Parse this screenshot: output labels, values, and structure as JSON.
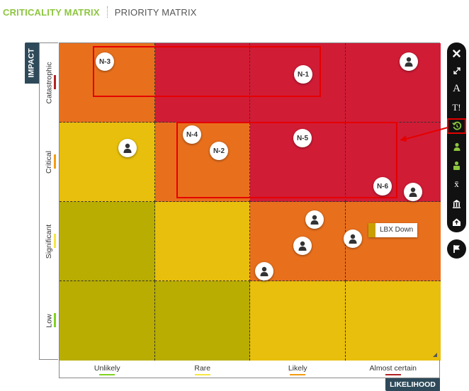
{
  "tabs": {
    "criticality": "CRITICALITY MATRIX",
    "priority": "PRIORITY MATRIX"
  },
  "axes": {
    "impact_title": "IMPACT",
    "likelihood_title": "LIKELIHOOD",
    "impact_levels": [
      {
        "label": "Catastrophic",
        "color": "#b22222"
      },
      {
        "label": "Critical",
        "color": "#f39c12"
      },
      {
        "label": "Significant",
        "color": "#f5e642"
      },
      {
        "label": "Low",
        "color": "#7fd321"
      }
    ],
    "likelihood_levels": [
      {
        "label": "Unlikely",
        "color": "#7fd321"
      },
      {
        "label": "Rare",
        "color": "#f5e642"
      },
      {
        "label": "Likely",
        "color": "#f39c12"
      },
      {
        "label": "Almost certain",
        "color": "#b22222"
      }
    ]
  },
  "colors": {
    "dark_red": "#d11c36",
    "orange": "#e8701d",
    "yellow": "#e8bf0c",
    "olive": "#b8ad00"
  },
  "markers": [
    {
      "label": "N-3"
    },
    {
      "label": "N-1"
    },
    {
      "label": "N-4"
    },
    {
      "label": "N-2"
    },
    {
      "label": "N-5"
    },
    {
      "label": "N-6"
    }
  ],
  "tooltip": {
    "text": "LBX Down",
    "color": "#c9a000"
  },
  "toolbar": {
    "buttons": [
      "close-icon",
      "expand-icon",
      "font-icon",
      "text-size-icon",
      "history-icon",
      "user-green-icon",
      "user-lock-icon",
      "x-bar-icon",
      "bank-icon",
      "home-upload-icon"
    ],
    "extra": "flag-icon"
  }
}
